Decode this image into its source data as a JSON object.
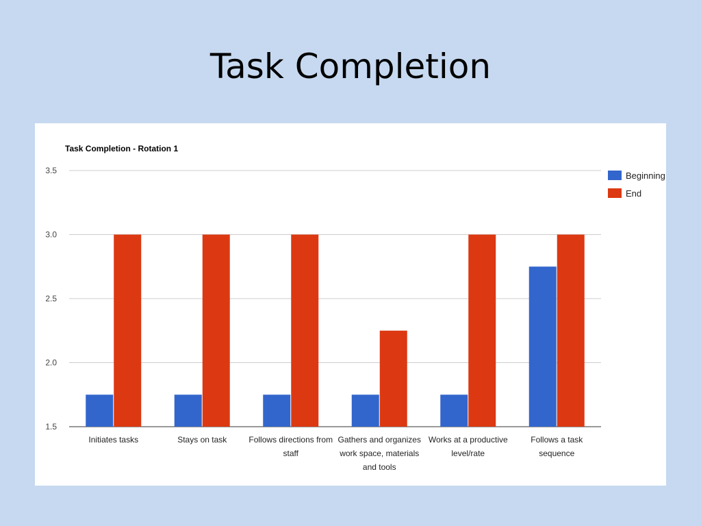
{
  "slide": {
    "title": "Task Completion"
  },
  "chart_data": {
    "type": "bar",
    "title": "Task Completion - Rotation 1",
    "xlabel": "",
    "ylabel": "",
    "ylim": [
      1.5,
      3.5
    ],
    "yticks": [
      "1.5",
      "2.0",
      "2.5",
      "3.0",
      "3.5"
    ],
    "grid": true,
    "legend_position": "right",
    "categories": [
      [
        "Initiates tasks"
      ],
      [
        "Stays on task"
      ],
      [
        "Follows directions from",
        "staff"
      ],
      [
        "Gathers and organizes",
        "work space, materials",
        "and tools"
      ],
      [
        "Works at a productive",
        "level/rate"
      ],
      [
        "Follows a task",
        "sequence"
      ]
    ],
    "series": [
      {
        "name": "Beginning",
        "color": "#3366cc",
        "values": [
          1.75,
          1.75,
          1.75,
          1.75,
          1.75,
          2.75
        ]
      },
      {
        "name": "End",
        "color": "#dc3912",
        "values": [
          3.0,
          3.0,
          3.0,
          2.25,
          3.0,
          3.0
        ]
      }
    ]
  }
}
